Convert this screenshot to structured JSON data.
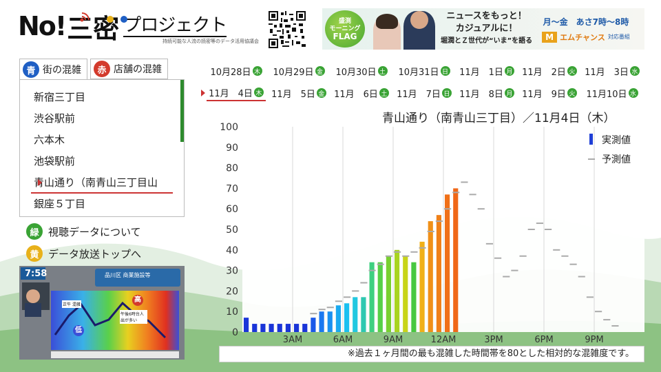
{
  "header": {
    "logo_no": "No!",
    "logo_three": "三",
    "logo_mitsu": "密",
    "logo_project": "プロジェクト",
    "logo_sub": "持続可能な人流の読密等のデータ活用協議会"
  },
  "banner": {
    "flag_line1": "盛渕",
    "flag_line2": "モーニング",
    "flag_line3": "FLAG",
    "text_line1": "ニュースをもっと！",
    "text_line2": "カジュアルに！",
    "text_line3": "堀潤とＺ世代が“いま”を語る",
    "schedule": "月〜金　あさ7時〜8時",
    "sponsor_logo": "M",
    "sponsor_name": "エムチャンス",
    "sponsor_sub": "対応番組"
  },
  "tabs": [
    {
      "badge": "青",
      "label": "街の混雑",
      "color": "#1f5fc4"
    },
    {
      "badge": "赤",
      "label": "店舗の混雑",
      "color": "#d33a2c"
    }
  ],
  "locations": [
    "新宿三丁目",
    "渋谷駅前",
    "六本木",
    "池袋駅前",
    "青山通り（南青山三丁目山",
    "銀座５丁目"
  ],
  "selected_location_index": 4,
  "menu": [
    {
      "badge": "緑",
      "label": "視聴データについて",
      "color": "#3aa335"
    },
    {
      "badge": "黄",
      "label": "データ放送トップへ",
      "color": "#e8b11a"
    }
  ],
  "tv": {
    "time": "7:58",
    "caption": "品川区 商業施設等",
    "label_high": "高",
    "label_low": "低",
    "peak_note": "午後6時台人出が多い",
    "noon_label": "正午 混雑"
  },
  "dates_row1": [
    {
      "text": "10月28日",
      "dow": "木",
      "color": "#3aa335"
    },
    {
      "text": "10月29日",
      "dow": "金",
      "color": "#3aa335"
    },
    {
      "text": "10月30日",
      "dow": "土",
      "color": "#3aa335"
    },
    {
      "text": "10月31日",
      "dow": "日",
      "color": "#3aa335"
    },
    {
      "text": "11月　1日",
      "dow": "月",
      "color": "#3aa335"
    },
    {
      "text": "11月　2日",
      "dow": "火",
      "color": "#3aa335"
    },
    {
      "text": "11月　3日",
      "dow": "水",
      "color": "#3aa335"
    }
  ],
  "dates_row2": [
    {
      "text": "11月　4日",
      "dow": "木",
      "color": "#3aa335"
    },
    {
      "text": "11月　5日",
      "dow": "金",
      "color": "#3aa335"
    },
    {
      "text": "11月　6日",
      "dow": "土",
      "color": "#3aa335"
    },
    {
      "text": "11月　7日",
      "dow": "日",
      "color": "#3aa335"
    },
    {
      "text": "11月　8日",
      "dow": "月",
      "color": "#3aa335"
    },
    {
      "text": "11月　9日",
      "dow": "火",
      "color": "#3aa335"
    },
    {
      "text": "11月10日",
      "dow": "水",
      "color": "#3aa335"
    }
  ],
  "selected_date_index_row2": 0,
  "chart_title": "青山通り（南青山三丁目）／11月4日（木）",
  "note": "※過去１ヶ月間の最も混雑した時間帯を80とした相対的な混雑度です。",
  "chart_data": {
    "type": "bar",
    "title": "青山通り（南青山三丁目）／11月4日（木）",
    "ylim": [
      0,
      100
    ],
    "yticks": [
      0,
      10,
      20,
      30,
      40,
      50,
      60,
      70,
      80,
      90,
      100
    ],
    "x_unit_minutes": 30,
    "x_tick_labels": [
      {
        "slot": 6,
        "label": "3AM"
      },
      {
        "slot": 12,
        "label": "6AM"
      },
      {
        "slot": 18,
        "label": "9AM"
      },
      {
        "slot": 24,
        "label": "12AM"
      },
      {
        "slot": 30,
        "label": "3PM"
      },
      {
        "slot": 36,
        "label": "6PM"
      },
      {
        "slot": 42,
        "label": "9PM"
      }
    ],
    "legend": [
      {
        "name": "実測値",
        "color": "#1f3fd6"
      },
      {
        "name": "予測値",
        "color": "#aaaaaa"
      }
    ],
    "legend_position": "top-right",
    "actual": [
      7,
      4,
      4,
      4,
      4,
      4,
      4,
      4,
      7,
      10,
      10,
      13,
      14,
      17,
      17,
      34,
      34,
      37,
      40,
      37,
      34,
      44,
      54,
      57,
      67,
      70
    ],
    "actual_colors": [
      "#1a35d8",
      "#1a35d8",
      "#1a35d8",
      "#1a35d8",
      "#1a35d8",
      "#1a35d8",
      "#1a35d8",
      "#1a35d8",
      "#1a58e8",
      "#1a78f0",
      "#1a90f0",
      "#1aaaf0",
      "#1ac0f0",
      "#22c8e0",
      "#2ec8b0",
      "#3ed080",
      "#56d048",
      "#78d030",
      "#a8d420",
      "#c8d418",
      "#48c840",
      "#f0b018",
      "#f09018",
      "#f08018",
      "#f07018",
      "#f06818"
    ],
    "forecast": [
      null,
      null,
      null,
      null,
      null,
      null,
      null,
      null,
      9,
      11,
      12,
      15,
      17,
      20,
      24,
      30,
      33,
      37,
      39,
      37,
      39,
      41,
      49,
      54,
      60,
      68,
      73,
      67,
      60,
      43,
      36,
      27,
      30,
      37,
      50,
      53,
      50,
      40,
      37,
      33,
      27,
      17,
      10,
      6,
      3
    ]
  }
}
